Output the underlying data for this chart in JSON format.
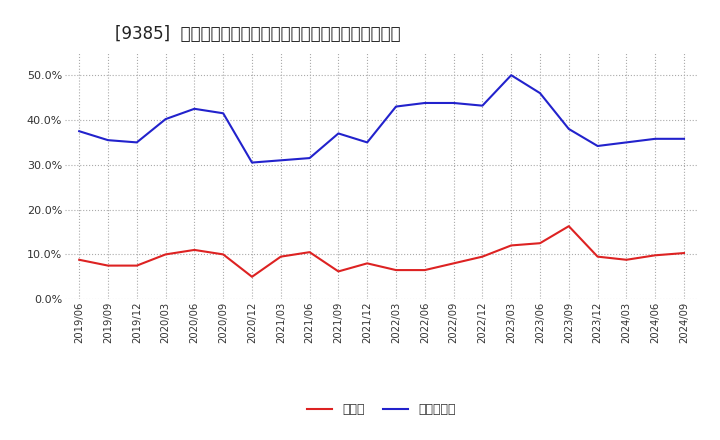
{
  "title": "[9385]  現預金、有利子負債の総資産に対する比率の推移",
  "x_labels": [
    "2019/06",
    "2019/09",
    "2019/12",
    "2020/03",
    "2020/06",
    "2020/09",
    "2020/12",
    "2021/03",
    "2021/06",
    "2021/09",
    "2021/12",
    "2022/03",
    "2022/06",
    "2022/09",
    "2022/12",
    "2023/03",
    "2023/06",
    "2023/09",
    "2023/12",
    "2024/03",
    "2024/06",
    "2024/09"
  ],
  "cash": [
    0.088,
    0.075,
    0.075,
    0.1,
    0.11,
    0.1,
    0.05,
    0.095,
    0.105,
    0.062,
    0.08,
    0.065,
    0.065,
    0.08,
    0.095,
    0.12,
    0.125,
    0.163,
    0.095,
    0.088,
    0.098,
    0.103
  ],
  "interest_bearing_debt": [
    0.375,
    0.355,
    0.35,
    0.402,
    0.425,
    0.415,
    0.305,
    0.31,
    0.315,
    0.37,
    0.35,
    0.43,
    0.438,
    0.438,
    0.432,
    0.5,
    0.46,
    0.38,
    0.342,
    0.35,
    0.358,
    0.358
  ],
  "cash_color": "#dd2222",
  "debt_color": "#2222cc",
  "background_color": "#ffffff",
  "plot_bg_color": "#ffffff",
  "grid_color": "#aaaaaa",
  "ylim": [
    0.0,
    0.55
  ],
  "yticks": [
    0.0,
    0.1,
    0.2,
    0.3,
    0.4,
    0.5
  ],
  "legend_cash": "現預金",
  "legend_debt": "有利子負債",
  "title_fontsize": 12
}
